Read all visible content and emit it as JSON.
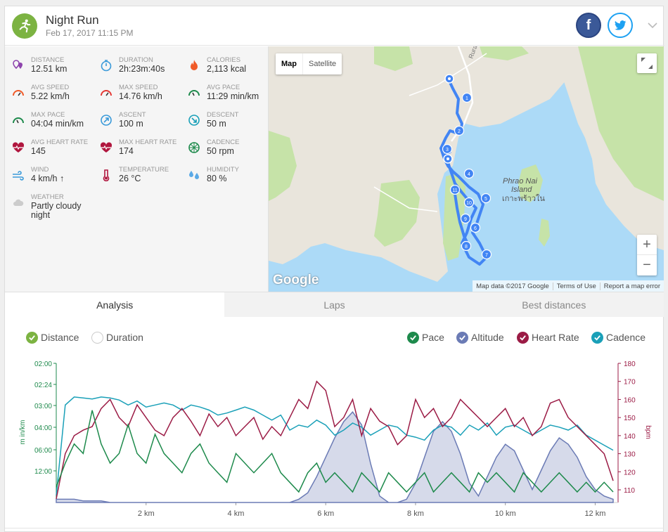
{
  "activity": {
    "title": "Night Run",
    "date": "Feb 17, 2017 11:15 PM",
    "icon": "runner-icon",
    "color": "#7cb342"
  },
  "share": {
    "facebook": "f"
  },
  "stats": [
    {
      "label": "DISTANCE",
      "value": "12.51 km",
      "icon": "distance-pin-icon",
      "color": "#8e44ad"
    },
    {
      "label": "DURATION",
      "value": "2h:23m:40s",
      "icon": "stopwatch-icon",
      "color": "#3a9ad9"
    },
    {
      "label": "CALORIES",
      "value": "2,113 kcal",
      "icon": "flame-icon",
      "color": "#f05a28"
    },
    {
      "label": "AVG SPEED",
      "value": "5.22 km/h",
      "icon": "speedometer-icon",
      "color": "#f05a28"
    },
    {
      "label": "MAX SPEED",
      "value": "14.76 km/h",
      "icon": "speedometer-icon",
      "color": "#e53935"
    },
    {
      "label": "AVG PACE",
      "value": "11:29 min/km",
      "icon": "pace-gauge-icon",
      "color": "#1e8a4c"
    },
    {
      "label": "MAX PACE",
      "value": "04:04 min/km",
      "icon": "pace-gauge-icon",
      "color": "#1e8a4c"
    },
    {
      "label": "ASCENT",
      "value": "100 m",
      "icon": "ascent-icon",
      "color": "#3a9ad9"
    },
    {
      "label": "DESCENT",
      "value": "50 m",
      "icon": "descent-icon",
      "color": "#1aa0b8"
    },
    {
      "label": "AVG HEART RATE",
      "value": "145",
      "icon": "heart-rate-icon",
      "color": "#b0163e"
    },
    {
      "label": "MAX HEART RATE",
      "value": "174",
      "icon": "heart-rate-icon",
      "color": "#b0163e"
    },
    {
      "label": "CADENCE",
      "value": "50 rpm",
      "icon": "cadence-wheel-icon",
      "color": "#1e8a4c"
    },
    {
      "label": "WIND",
      "value": "4 km/h ↑",
      "icon": "wind-icon",
      "color": "#3a9ad9"
    },
    {
      "label": "TEMPERATURE",
      "value": "26 °C",
      "icon": "thermometer-icon",
      "color": "#b0163e"
    },
    {
      "label": "HUMIDITY",
      "value": "80 %",
      "icon": "humidity-icon",
      "color": "#5aa9e6"
    },
    {
      "label": "WEATHER",
      "value": "Partly cloudy night",
      "icon": "cloudy-night-icon",
      "color": "#cccccc"
    }
  ],
  "map": {
    "type_map": "Map",
    "type_satellite": "Satellite",
    "road_label": "Rural Rd",
    "island_name": "Phrao Nai Island",
    "island_name_local": "เกาะพร้าวใน",
    "logo": "Google",
    "attribution": [
      "Map data ©2017 Google",
      "Terms of Use",
      "Report a map error"
    ],
    "zoom_in": "+",
    "zoom_out": "−",
    "markers": [
      "1",
      "2",
      "3",
      "4",
      "5",
      "6",
      "7",
      "8",
      "9",
      "10",
      "11"
    ]
  },
  "tabs": [
    {
      "label": "Analysis",
      "active": true
    },
    {
      "label": "Laps",
      "active": false
    },
    {
      "label": "Best distances",
      "active": false
    }
  ],
  "axis_mode": [
    {
      "label": "Distance",
      "checked": true,
      "color": "#7cb342"
    },
    {
      "label": "Duration",
      "checked": false,
      "color": "#cccccc"
    }
  ],
  "chart_data": {
    "type": "line",
    "x": [
      0,
      0.2,
      0.4,
      0.6,
      0.8,
      1,
      1.2,
      1.4,
      1.6,
      1.8,
      2,
      2.2,
      2.4,
      2.6,
      2.8,
      3,
      3.2,
      3.4,
      3.6,
      3.8,
      4,
      4.2,
      4.4,
      4.6,
      4.8,
      5,
      5.2,
      5.4,
      5.6,
      5.8,
      6,
      6.2,
      6.4,
      6.6,
      6.8,
      7,
      7.2,
      7.4,
      7.6,
      7.8,
      8,
      8.2,
      8.4,
      8.6,
      8.8,
      9,
      9.2,
      9.4,
      9.6,
      9.8,
      10,
      10.2,
      10.4,
      10.6,
      10.8,
      11,
      11.2,
      11.4,
      11.6,
      11.8,
      12,
      12.2,
      12.4
    ],
    "xlim": [
      0,
      12.51
    ],
    "x_ticks": [
      "2 km",
      "4 km",
      "6 km",
      "8 km",
      "10 km",
      "12 km"
    ],
    "x_tick_values": [
      2,
      4,
      6,
      8,
      10,
      12
    ],
    "y_left_ticks": [
      "02:00",
      "02:24",
      "03:00",
      "04:00",
      "06:00",
      "12:00"
    ],
    "y_left_label": "m in/km",
    "y_right_ticks": [
      "110",
      "120",
      "130",
      "140",
      "150",
      "160",
      "170",
      "180"
    ],
    "y_right_label": "bpm",
    "y_right_lim": [
      100,
      180
    ],
    "series": [
      {
        "name": "Pace",
        "color": "#1e8a4c",
        "checked": true,
        "values": [
          11.5,
          9,
          7,
          8,
          3.5,
          7,
          9,
          8,
          5,
          8,
          9,
          6,
          8,
          9,
          10,
          8,
          7,
          9,
          10,
          11,
          8,
          9,
          10,
          9,
          8,
          10,
          11,
          12,
          10,
          9,
          11,
          10,
          11,
          12,
          10,
          11,
          12,
          10,
          11,
          12,
          11,
          10,
          12,
          11,
          10,
          11,
          12,
          10,
          11,
          10,
          11,
          12,
          10,
          11,
          12,
          11,
          10,
          11,
          12,
          11,
          12,
          11,
          12
        ]
      },
      {
        "name": "Altitude",
        "color": "#6b7bb5",
        "checked": true,
        "values": [
          1,
          1,
          1,
          0.5,
          0.5,
          0.5,
          0,
          0,
          0,
          0,
          0,
          0,
          0,
          0,
          0,
          0,
          0,
          0,
          0,
          0,
          0,
          0,
          0,
          0,
          0,
          0,
          0,
          1,
          3,
          8,
          14,
          20,
          25,
          28,
          24,
          12,
          2,
          0,
          0,
          1,
          6,
          14,
          22,
          25,
          22,
          15,
          6,
          2,
          8,
          14,
          18,
          16,
          10,
          4,
          10,
          16,
          20,
          18,
          14,
          8,
          4,
          2,
          1
        ]
      },
      {
        "name": "Heart Rate",
        "color": "#9b1b45",
        "checked": true,
        "values": [
          105,
          130,
          140,
          143,
          145,
          155,
          160,
          150,
          145,
          157,
          150,
          143,
          140,
          150,
          155,
          148,
          140,
          152,
          145,
          150,
          140,
          145,
          150,
          138,
          145,
          140,
          150,
          160,
          155,
          170,
          165,
          145,
          150,
          160,
          140,
          155,
          148,
          145,
          135,
          140,
          160,
          150,
          155,
          145,
          150,
          160,
          155,
          150,
          145,
          150,
          155,
          145,
          150,
          140,
          145,
          158,
          160,
          150,
          145,
          140,
          135,
          130,
          115
        ]
      },
      {
        "name": "Cadence",
        "color": "#1aa0b8",
        "checked": true,
        "values": [
          60,
          150,
          158,
          157,
          156,
          158,
          157,
          155,
          150,
          154,
          148,
          150,
          152,
          150,
          145,
          150,
          148,
          145,
          140,
          142,
          145,
          148,
          145,
          140,
          135,
          140,
          125,
          130,
          128,
          135,
          130,
          120,
          125,
          132,
          128,
          120,
          125,
          130,
          128,
          120,
          118,
          115,
          125,
          130,
          128,
          120,
          130,
          125,
          132,
          120,
          128,
          130,
          125,
          120,
          125,
          130,
          128,
          125,
          130,
          120,
          115,
          110,
          105
        ]
      }
    ]
  }
}
